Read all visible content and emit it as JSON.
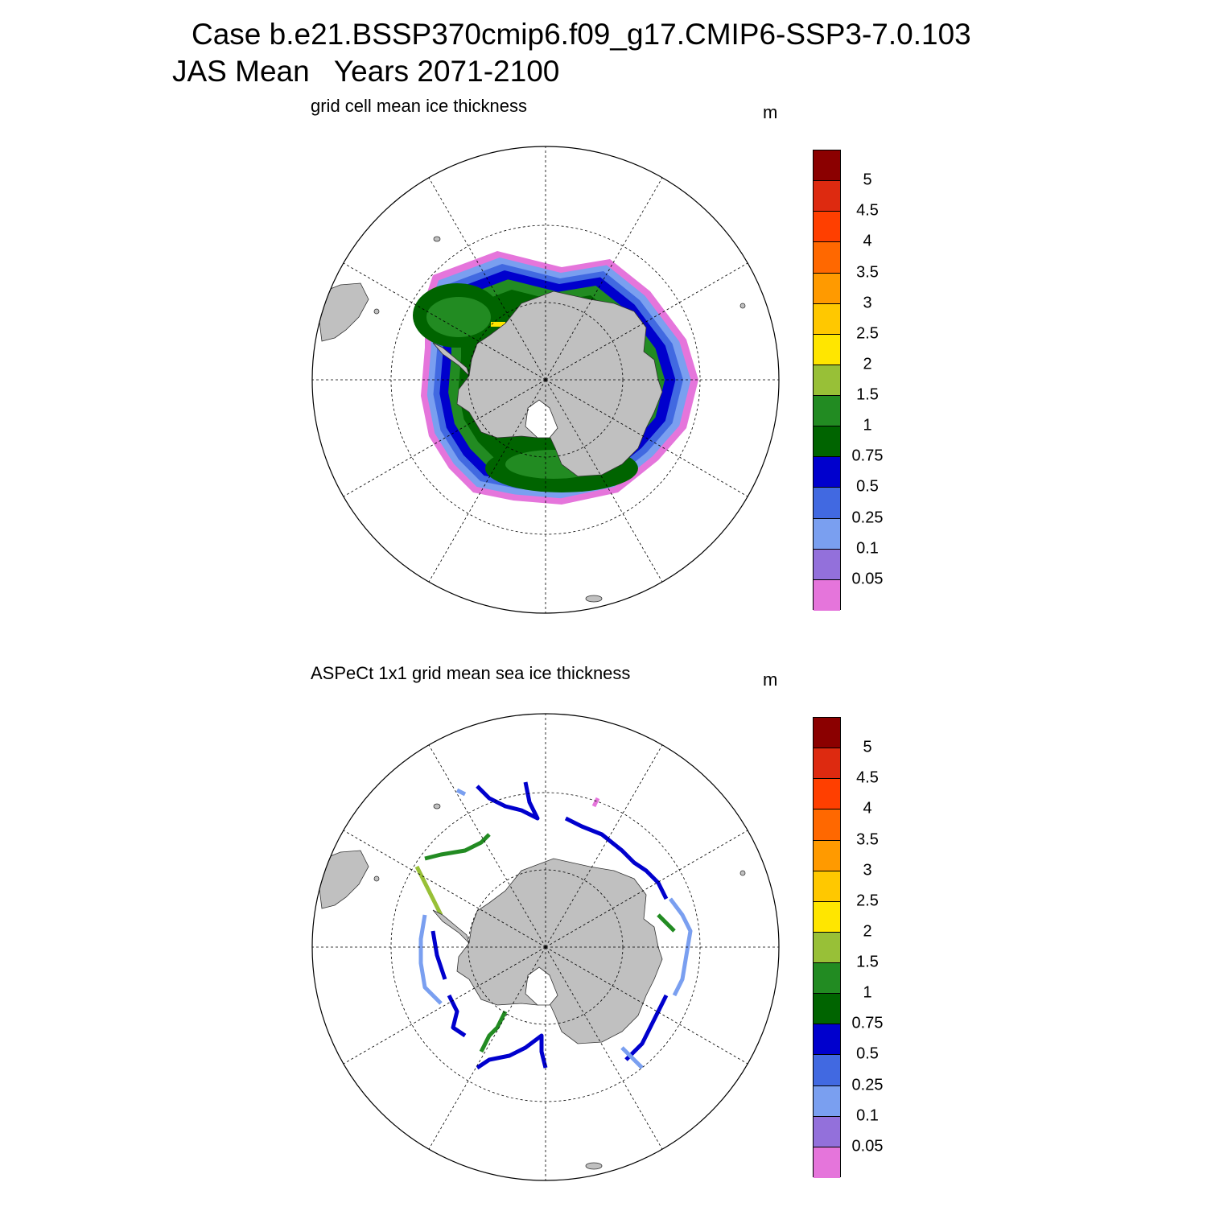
{
  "title": {
    "line1": "Case b.e21.BSSP370cmip6.f09_g17.CMIP6-SSP3-7.0.103",
    "line2": "JAS Mean   Years 2071-2100"
  },
  "panels": [
    {
      "id": "model",
      "title": "grid cell mean ice thickness",
      "units": "m"
    },
    {
      "id": "obs",
      "title": "ASPeCt 1x1 grid mean sea ice thickness",
      "units": "m"
    }
  ],
  "colorbar": {
    "labels": [
      "5",
      "4.5",
      "4",
      "3.5",
      "3",
      "2.5",
      "2",
      "1.5",
      "1",
      "0.75",
      "0.5",
      "0.25",
      "0.1",
      "0.05"
    ],
    "colors": [
      "#8b0000",
      "#dd2a10",
      "#ff3f00",
      "#ff6800",
      "#ff9a00",
      "#ffc800",
      "#ffe600",
      "#98c037",
      "#228b22",
      "#006400",
      "#0000cd",
      "#4169e1",
      "#7a9ff0",
      "#9370db",
      "#e575db"
    ]
  },
  "map_style": {
    "land": "#c0c0c0",
    "ocean": "#ffffff",
    "grid_line": "#000000"
  }
}
